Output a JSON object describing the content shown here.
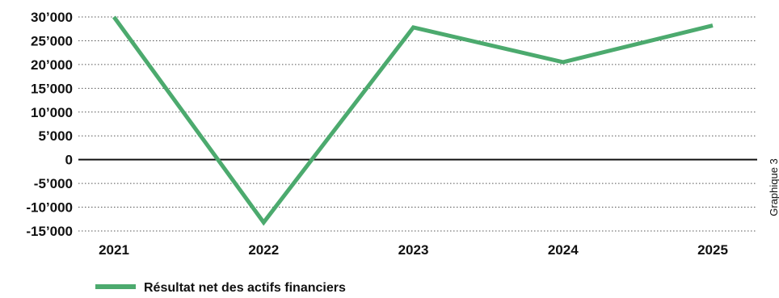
{
  "chart_data": {
    "type": "line",
    "categories": [
      "2021",
      "2022",
      "2023",
      "2024",
      "2025"
    ],
    "series": [
      {
        "name": "Résultat net des actifs financiers",
        "values": [
          30000,
          -13200,
          27800,
          20500,
          28200
        ]
      }
    ],
    "yticks": [
      "30’000",
      "25’000",
      "20’000",
      "15’000",
      "10’000",
      "5’000",
      "0",
      "-5’000",
      "-10’000",
      "-15’000"
    ],
    "ylim": [
      -15000,
      30000
    ],
    "ystep": 5000,
    "grid": true,
    "legend_position": "bottom-left",
    "side_label": "Graphique 3",
    "colors": {
      "series": "#4caa6e",
      "grid": "#555555",
      "zero": "#111111",
      "text": "#111111"
    }
  }
}
